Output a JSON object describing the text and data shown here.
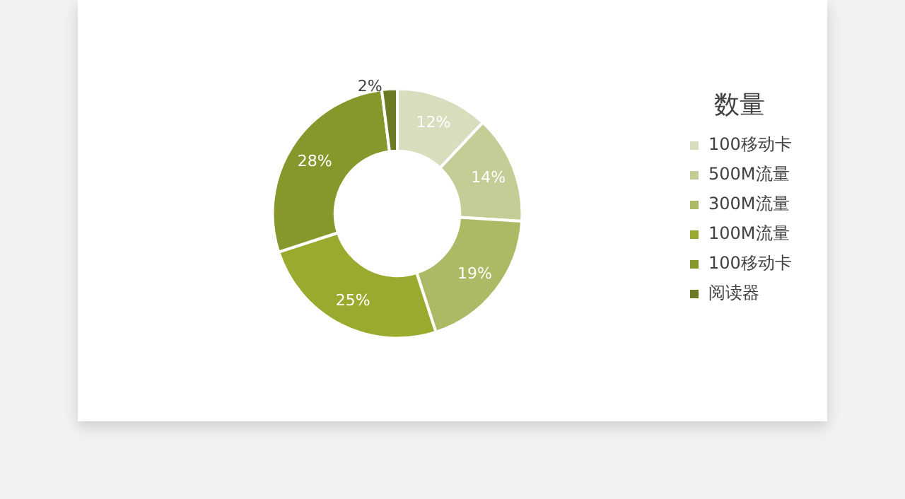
{
  "chart_data": {
    "type": "donut",
    "legend_title": "数量",
    "legend": "right",
    "categories": [
      "100移动卡",
      "500M流量",
      "300M流量",
      "100M流量",
      "100移动卡",
      "阅读器"
    ],
    "values": [
      12,
      14,
      19,
      25,
      28,
      2
    ],
    "value_labels": [
      "12%",
      "14%",
      "19%",
      "25%",
      "28%",
      "2%"
    ],
    "colors": [
      "#d7ddbd",
      "#c4cd95",
      "#adb965",
      "#9aaa2f",
      "#88972b",
      "#6b7a23"
    ]
  }
}
